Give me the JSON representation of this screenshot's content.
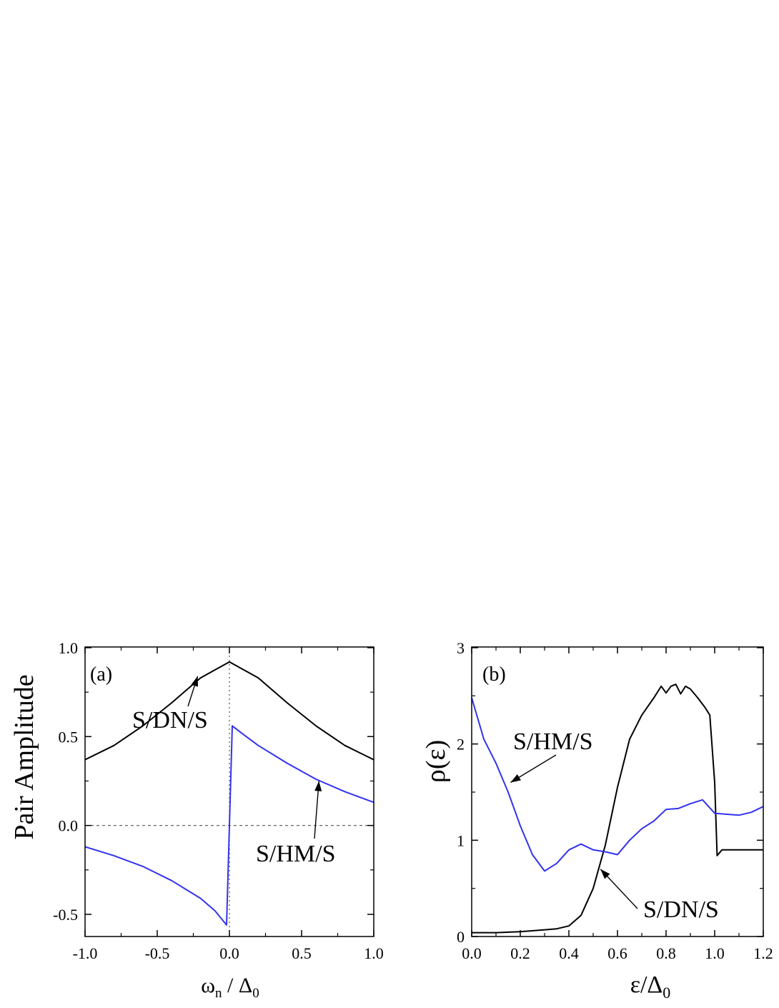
{
  "colors": {
    "black_series": "#000000",
    "blue_series": "#3333ee",
    "frame": "#000000"
  },
  "chart_data": [
    {
      "panel": "a",
      "type": "line",
      "panel_label": "(a)",
      "ylabel": "Pair Amplitude",
      "xlabel_main": "ω",
      "xlabel_sub": "n",
      "xlabel_mid": " / Δ",
      "xlabel_sub2": "0",
      "xlim": [
        -1.0,
        1.0
      ],
      "ylim": [
        -0.7,
        1.0
      ],
      "xticks": [
        -1.0,
        -0.5,
        0.0,
        0.5,
        1.0
      ],
      "xtick_labels": [
        "-1.0",
        "-0.5",
        "0.0",
        "0.5",
        "1.0"
      ],
      "yticks": [
        -0.5,
        0.0,
        0.5,
        1.0
      ],
      "ytick_labels": [
        "-0.5",
        "0.0",
        "0.5",
        "1.0"
      ],
      "reference_lines": {
        "y_zero_dashed": true,
        "x_zero_dotted": true
      },
      "series": [
        {
          "name": "S/DN/S",
          "color": "#000000",
          "x": [
            -1.0,
            -0.8,
            -0.6,
            -0.4,
            -0.2,
            0.0,
            0.2,
            0.4,
            0.6,
            0.8,
            1.0
          ],
          "y": [
            0.37,
            0.45,
            0.56,
            0.69,
            0.83,
            0.92,
            0.83,
            0.69,
            0.56,
            0.45,
            0.37
          ]
        },
        {
          "name": "S/HM/S",
          "color": "#3333ee",
          "x": [
            -1.0,
            -0.8,
            -0.6,
            -0.4,
            -0.2,
            -0.1,
            -0.02,
            0.0,
            0.02,
            0.1,
            0.2,
            0.4,
            0.6,
            0.8,
            1.0
          ],
          "y": [
            -0.12,
            -0.17,
            -0.23,
            -0.31,
            -0.41,
            -0.48,
            -0.56,
            0.0,
            0.56,
            0.51,
            0.45,
            0.35,
            0.26,
            0.19,
            0.13
          ]
        }
      ],
      "annotations": [
        {
          "text": "S/DN/S",
          "series": "S/DN/S",
          "arrow_to": [
            -0.22,
            0.84
          ]
        },
        {
          "text": "S/HM/S",
          "series": "S/HM/S",
          "arrow_to": [
            0.62,
            0.25
          ]
        }
      ]
    },
    {
      "panel": "b",
      "type": "line",
      "panel_label": "(b)",
      "ylabel": "ρ(ε)",
      "xlabel_main": "ε/Δ",
      "xlabel_sub": "0",
      "xlim": [
        0.0,
        1.2
      ],
      "ylim": [
        0,
        3
      ],
      "xticks": [
        0.0,
        0.2,
        0.4,
        0.6,
        0.8,
        1.0,
        1.2
      ],
      "xtick_labels": [
        "0.0",
        "0.2",
        "0.4",
        "0.6",
        "0.8",
        "1.0",
        "1.2"
      ],
      "yticks": [
        0,
        1,
        2,
        3
      ],
      "ytick_labels": [
        "0",
        "1",
        "2",
        "3"
      ],
      "series": [
        {
          "name": "S/DN/S",
          "color": "#000000",
          "x": [
            0.0,
            0.1,
            0.2,
            0.3,
            0.35,
            0.4,
            0.45,
            0.5,
            0.55,
            0.6,
            0.65,
            0.7,
            0.75,
            0.78,
            0.8,
            0.82,
            0.84,
            0.86,
            0.88,
            0.9,
            0.93,
            0.96,
            0.98,
            1.0,
            1.01,
            1.03,
            1.1,
            1.2
          ],
          "y": [
            0.04,
            0.04,
            0.05,
            0.07,
            0.08,
            0.11,
            0.22,
            0.5,
            0.95,
            1.55,
            2.05,
            2.3,
            2.48,
            2.6,
            2.53,
            2.6,
            2.62,
            2.52,
            2.6,
            2.57,
            2.48,
            2.38,
            2.3,
            1.6,
            0.84,
            0.9,
            0.9,
            0.9
          ]
        },
        {
          "name": "S/HM/S",
          "color": "#3333ee",
          "x": [
            0.0,
            0.05,
            0.1,
            0.15,
            0.2,
            0.25,
            0.3,
            0.35,
            0.4,
            0.45,
            0.5,
            0.55,
            0.6,
            0.65,
            0.7,
            0.75,
            0.8,
            0.85,
            0.9,
            0.95,
            1.0,
            1.05,
            1.1,
            1.15,
            1.2
          ],
          "y": [
            2.48,
            2.05,
            1.8,
            1.5,
            1.15,
            0.85,
            0.68,
            0.76,
            0.9,
            0.96,
            0.9,
            0.88,
            0.85,
            1.0,
            1.12,
            1.2,
            1.32,
            1.33,
            1.38,
            1.42,
            1.28,
            1.27,
            1.26,
            1.29,
            1.35
          ]
        }
      ],
      "annotations": [
        {
          "text": "S/HM/S",
          "series": "S/HM/S",
          "arrow_to": [
            0.16,
            1.6
          ]
        },
        {
          "text": "S/DN/S",
          "series": "S/DN/S",
          "arrow_to": [
            0.53,
            0.7
          ]
        }
      ]
    }
  ]
}
